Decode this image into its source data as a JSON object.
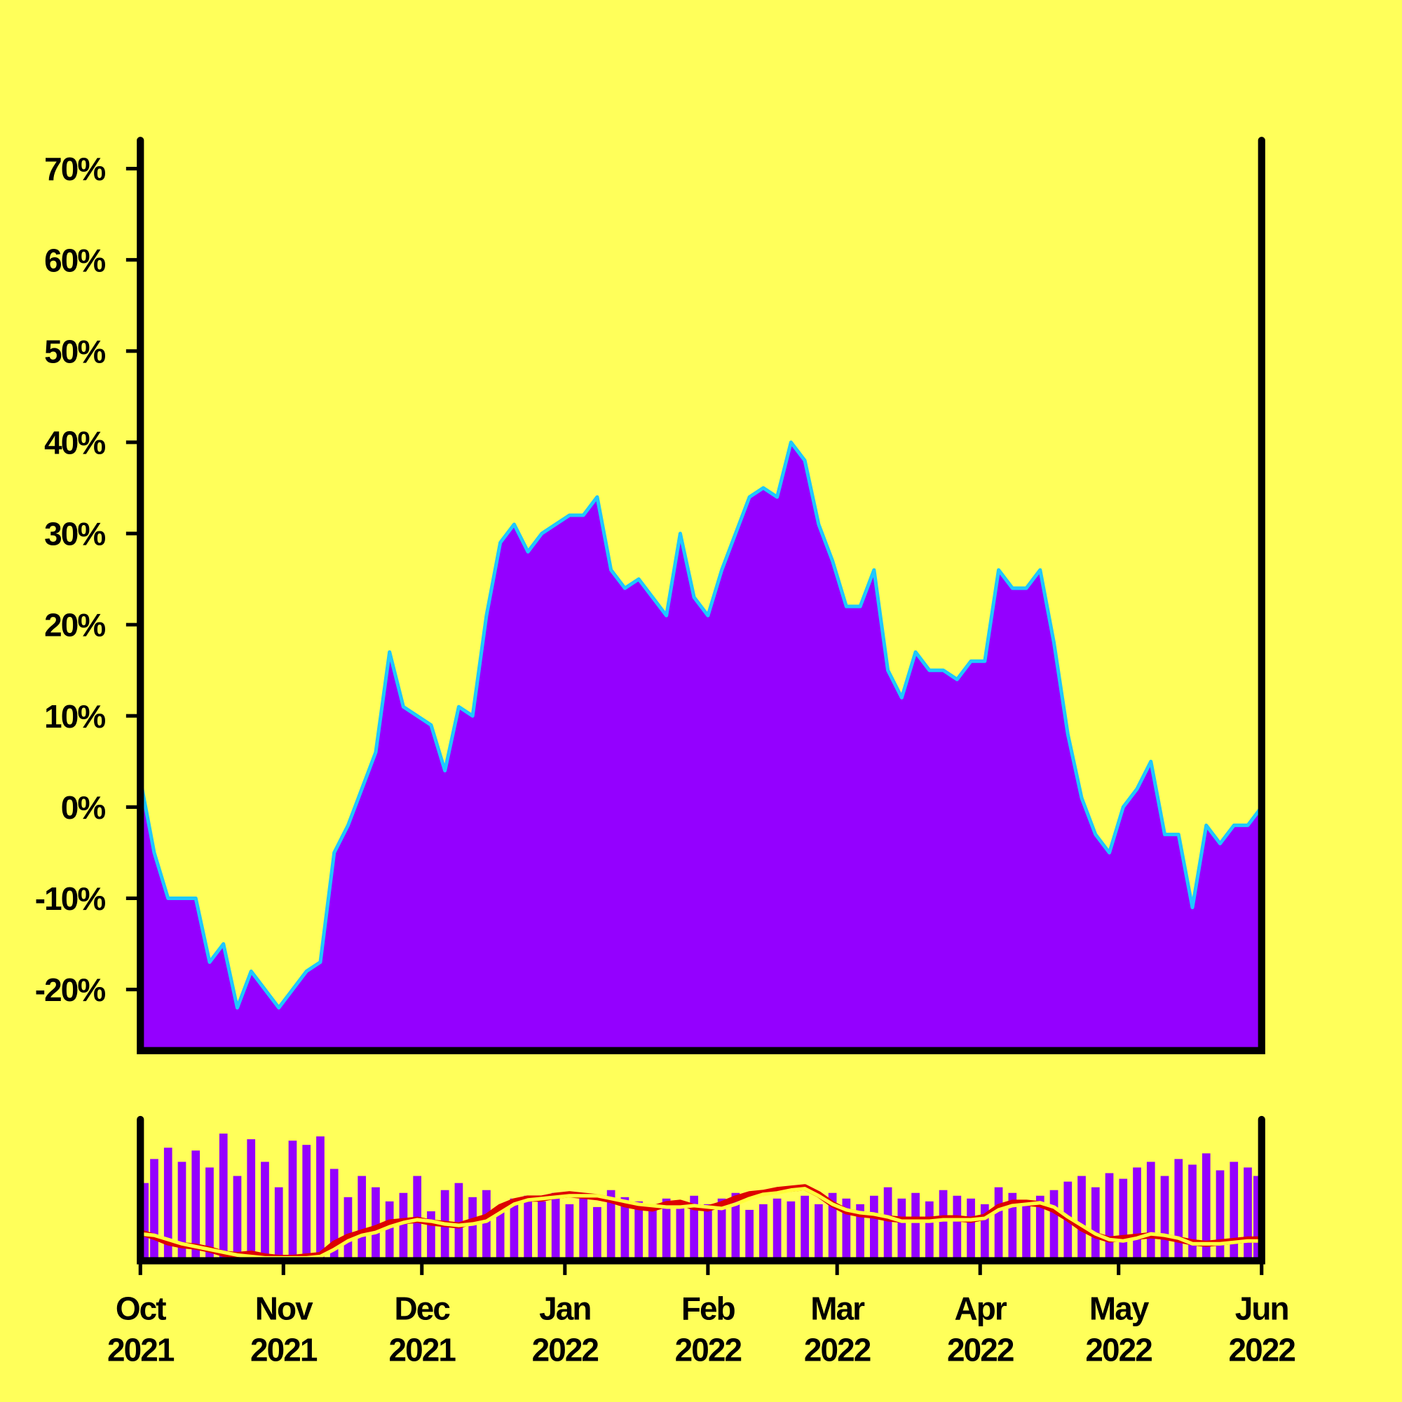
{
  "chart_data": [
    {
      "type": "area",
      "x": [
        0,
        3,
        6,
        9,
        12,
        15,
        18,
        21,
        24,
        27,
        30,
        33,
        36,
        39,
        42,
        45,
        48,
        51,
        54,
        57,
        60,
        63,
        66,
        69,
        72,
        75,
        78,
        81,
        84,
        87,
        90,
        93,
        96,
        99,
        102,
        105,
        108,
        111,
        114,
        117,
        120,
        123,
        126,
        129,
        132,
        135,
        138,
        141,
        144,
        147,
        150,
        153,
        156,
        159,
        162,
        165,
        168,
        171,
        174,
        177,
        180,
        183,
        186,
        189,
        192,
        195,
        198,
        201,
        204,
        207,
        210,
        213,
        216,
        219,
        222,
        225,
        228,
        231,
        234,
        237,
        240,
        243
      ],
      "xlim": [
        0,
        243
      ],
      "values": [
        3,
        -5,
        -10,
        -10,
        -10,
        -17,
        -15,
        -22,
        -18,
        -20,
        -22,
        -20,
        -18,
        -17,
        -5,
        -2,
        2,
        6,
        17,
        11,
        10,
        9,
        4,
        11,
        10,
        21,
        29,
        31,
        28,
        30,
        31,
        32,
        32,
        34,
        26,
        24,
        25,
        23,
        21,
        30,
        23,
        21,
        26,
        30,
        34,
        35,
        34,
        40,
        38,
        31,
        27,
        22,
        22,
        26,
        15,
        12,
        17,
        15,
        15,
        14,
        16,
        16,
        26,
        24,
        24,
        26,
        18,
        8,
        1,
        -3,
        -5,
        0,
        2,
        5,
        -3,
        -3,
        -11,
        -2,
        -4,
        -2,
        -2,
        0
      ],
      "color": "#9400ff",
      "line_color": "#1ec8ff",
      "ylim": [
        -26.7,
        73.1
      ],
      "yticks": [
        {
          "value": -20,
          "label": "-20%"
        },
        {
          "value": -10,
          "label": "-10%"
        },
        {
          "value": 0,
          "label": "0%"
        },
        {
          "value": 10,
          "label": "10%"
        },
        {
          "value": 20,
          "label": "20%"
        },
        {
          "value": 30,
          "label": "30%"
        },
        {
          "value": 40,
          "label": "40%"
        },
        {
          "value": 50,
          "label": "50%"
        },
        {
          "value": 60,
          "label": "60%"
        },
        {
          "value": 70,
          "label": "70%"
        }
      ]
    },
    {
      "type": "bar",
      "x": [
        0,
        3,
        6,
        9,
        12,
        15,
        18,
        21,
        24,
        27,
        30,
        33,
        36,
        39,
        42,
        45,
        48,
        51,
        54,
        57,
        60,
        63,
        66,
        69,
        72,
        75,
        78,
        81,
        84,
        87,
        90,
        93,
        96,
        99,
        102,
        105,
        108,
        111,
        114,
        117,
        120,
        123,
        126,
        129,
        132,
        135,
        138,
        141,
        144,
        147,
        150,
        153,
        156,
        159,
        162,
        165,
        168,
        171,
        174,
        177,
        180,
        183,
        186,
        189,
        192,
        195,
        198,
        201,
        204,
        207,
        210,
        213,
        216,
        219,
        222,
        225,
        228,
        231,
        234,
        237,
        240,
        243
      ],
      "xlim": [
        0,
        243
      ],
      "ylim": [
        0,
        100
      ],
      "values": [
        55,
        72,
        80,
        70,
        78,
        66,
        90,
        60,
        86,
        70,
        52,
        85,
        82,
        88,
        65,
        45,
        60,
        52,
        42,
        48,
        60,
        35,
        50,
        55,
        45,
        50,
        38,
        44,
        46,
        42,
        48,
        40,
        44,
        38,
        50,
        45,
        42,
        40,
        44,
        38,
        46,
        40,
        44,
        48,
        36,
        40,
        44,
        42,
        46,
        40,
        48,
        44,
        40,
        46,
        52,
        44,
        48,
        42,
        50,
        46,
        44,
        40,
        52,
        48,
        42,
        46,
        50,
        56,
        60,
        52,
        62,
        58,
        66,
        70,
        60,
        72,
        68,
        76,
        64,
        70,
        66,
        60
      ],
      "color": "#9400ff",
      "lines": [
        {
          "color": "#dd0000",
          "values": [
            20,
            17,
            13,
            11,
            10,
            8,
            5,
            4,
            5,
            3,
            2,
            2,
            3,
            4,
            12,
            17,
            20,
            23,
            27,
            28,
            29,
            27,
            26,
            25,
            28,
            31,
            38,
            42,
            44,
            44,
            46,
            47,
            46,
            45,
            43,
            40,
            38,
            37,
            40,
            41,
            38,
            37,
            40,
            44,
            47,
            48,
            50,
            51,
            52,
            47,
            40,
            35,
            33,
            32,
            30,
            29,
            29,
            29,
            30,
            30,
            29,
            31,
            38,
            41,
            41,
            40,
            36,
            30,
            23,
            18,
            15,
            16,
            17,
            18,
            17,
            15,
            13,
            12,
            13,
            14,
            15,
            15
          ]
        },
        {
          "color": "#ffff3c",
          "values": [
            19,
            18,
            15,
            12,
            10,
            8,
            6,
            4,
            3,
            2,
            2,
            2,
            2,
            3,
            8,
            14,
            18,
            20,
            24,
            27,
            29,
            28,
            26,
            25,
            26,
            28,
            34,
            40,
            43,
            44,
            45,
            46,
            46,
            46,
            44,
            42,
            40,
            39,
            38,
            38,
            39,
            38,
            37,
            40,
            44,
            47,
            48,
            50,
            51,
            46,
            40,
            36,
            34,
            33,
            31,
            28,
            28,
            28,
            29,
            29,
            29,
            30,
            36,
            39,
            40,
            41,
            38,
            31,
            25,
            19,
            15,
            14,
            16,
            19,
            18,
            16,
            12,
            12,
            12,
            13,
            14,
            14
          ]
        }
      ],
      "xticks": [
        {
          "value": 0,
          "label": [
            "Oct",
            "2021"
          ]
        },
        {
          "value": 31,
          "label": [
            "Nov",
            "2021"
          ]
        },
        {
          "value": 61,
          "label": [
            "Dec",
            "2021"
          ]
        },
        {
          "value": 92,
          "label": [
            "Jan",
            "2022"
          ]
        },
        {
          "value": 123,
          "label": [
            "Feb",
            "2022"
          ]
        },
        {
          "value": 151,
          "label": [
            "Mar",
            "2022"
          ]
        },
        {
          "value": 182,
          "label": [
            "Apr",
            "2022"
          ]
        },
        {
          "value": 212,
          "label": [
            "May",
            "2022"
          ]
        },
        {
          "value": 243,
          "label": [
            "Jun",
            "2022"
          ]
        }
      ]
    }
  ]
}
